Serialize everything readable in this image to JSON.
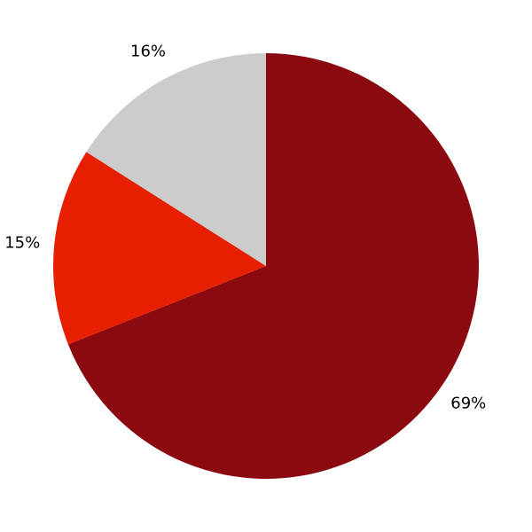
{
  "chart_data": {
    "type": "pie",
    "title": "",
    "start": "top",
    "direction": "clockwise",
    "slices": [
      {
        "value": 69,
        "label": "69%",
        "color": "#8b0a10"
      },
      {
        "value": 15,
        "label": "15%",
        "color": "#e61f00"
      },
      {
        "value": 16,
        "label": "16%",
        "color": "#cccccc"
      }
    ],
    "legend": "none"
  }
}
